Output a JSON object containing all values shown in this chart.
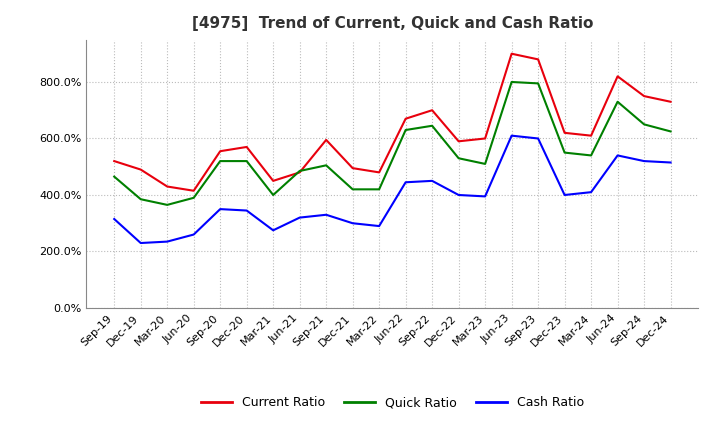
{
  "title": "[4975]  Trend of Current, Quick and Cash Ratio",
  "x_labels": [
    "Sep-19",
    "Dec-19",
    "Mar-20",
    "Jun-20",
    "Sep-20",
    "Dec-20",
    "Mar-21",
    "Jun-21",
    "Sep-21",
    "Dec-21",
    "Mar-22",
    "Jun-22",
    "Sep-22",
    "Dec-22",
    "Mar-23",
    "Jun-23",
    "Sep-23",
    "Dec-23",
    "Mar-24",
    "Jun-24",
    "Sep-24",
    "Dec-24"
  ],
  "current_ratio": [
    520,
    490,
    430,
    415,
    555,
    570,
    450,
    480,
    595,
    495,
    480,
    670,
    700,
    590,
    600,
    900,
    880,
    620,
    610,
    820,
    750,
    730
  ],
  "quick_ratio": [
    465,
    385,
    365,
    390,
    520,
    520,
    400,
    485,
    505,
    420,
    420,
    630,
    645,
    530,
    510,
    800,
    795,
    550,
    540,
    730,
    650,
    625
  ],
  "cash_ratio": [
    315,
    230,
    235,
    260,
    350,
    345,
    275,
    320,
    330,
    300,
    290,
    445,
    450,
    400,
    395,
    610,
    600,
    400,
    410,
    540,
    520,
    515
  ],
  "current_color": "#e8000d",
  "quick_color": "#008000",
  "cash_color": "#0000ff",
  "ylim": [
    0,
    950
  ],
  "yticks": [
    0,
    200,
    400,
    600,
    800
  ],
  "background_color": "#ffffff",
  "plot_bg_color": "#ffffff",
  "grid_color": "#aaaaaa",
  "title_fontsize": 11,
  "legend_fontsize": 9,
  "tick_fontsize": 8
}
